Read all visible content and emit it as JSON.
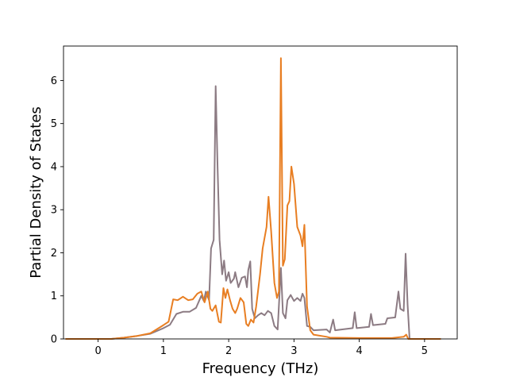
{
  "chart_data": {
    "type": "line",
    "title": "",
    "xlabel": "Frequency (THz)",
    "ylabel": "Partial Density of States",
    "xlim": [
      -0.53,
      5.5
    ],
    "ylim": [
      0,
      6.8
    ],
    "xticks": [
      0,
      1,
      2,
      3,
      4,
      5
    ],
    "yticks": [
      0,
      1,
      2,
      3,
      4,
      5,
      6
    ],
    "grid": false,
    "legend": "none",
    "series": [
      {
        "color": "#8c7b83",
        "points": [
          [
            -0.5,
            0
          ],
          [
            0.2,
            0.0
          ],
          [
            0.4,
            0.03
          ],
          [
            0.6,
            0.07
          ],
          [
            0.8,
            0.12
          ],
          [
            1.0,
            0.25
          ],
          [
            1.1,
            0.33
          ],
          [
            1.2,
            0.58
          ],
          [
            1.3,
            0.63
          ],
          [
            1.4,
            0.63
          ],
          [
            1.5,
            0.72
          ],
          [
            1.58,
            1.0
          ],
          [
            1.62,
            0.88
          ],
          [
            1.65,
            1.1
          ],
          [
            1.7,
            0.9
          ],
          [
            1.73,
            2.1
          ],
          [
            1.77,
            2.3
          ],
          [
            1.8,
            5.87
          ],
          [
            1.83,
            4.0
          ],
          [
            1.86,
            2.3
          ],
          [
            1.9,
            1.5
          ],
          [
            1.93,
            1.82
          ],
          [
            1.96,
            1.35
          ],
          [
            2.0,
            1.55
          ],
          [
            2.03,
            1.3
          ],
          [
            2.08,
            1.4
          ],
          [
            2.1,
            1.55
          ],
          [
            2.15,
            1.2
          ],
          [
            2.2,
            1.42
          ],
          [
            2.25,
            1.45
          ],
          [
            2.28,
            1.2
          ],
          [
            2.3,
            1.6
          ],
          [
            2.33,
            1.8
          ],
          [
            2.36,
            0.7
          ],
          [
            2.4,
            0.48
          ],
          [
            2.45,
            0.55
          ],
          [
            2.5,
            0.6
          ],
          [
            2.55,
            0.55
          ],
          [
            2.6,
            0.65
          ],
          [
            2.65,
            0.6
          ],
          [
            2.7,
            0.3
          ],
          [
            2.75,
            0.22
          ],
          [
            2.8,
            1.65
          ],
          [
            2.83,
            0.6
          ],
          [
            2.87,
            0.48
          ],
          [
            2.9,
            0.9
          ],
          [
            2.95,
            1.02
          ],
          [
            3.0,
            0.88
          ],
          [
            3.05,
            0.95
          ],
          [
            3.1,
            0.88
          ],
          [
            3.13,
            1.05
          ],
          [
            3.16,
            0.95
          ],
          [
            3.2,
            0.3
          ],
          [
            3.25,
            0.28
          ],
          [
            3.3,
            0.2
          ],
          [
            3.5,
            0.22
          ],
          [
            3.55,
            0.15
          ],
          [
            3.6,
            0.45
          ],
          [
            3.63,
            0.2
          ],
          [
            3.9,
            0.25
          ],
          [
            3.93,
            0.62
          ],
          [
            3.96,
            0.25
          ],
          [
            4.15,
            0.28
          ],
          [
            4.18,
            0.58
          ],
          [
            4.21,
            0.32
          ],
          [
            4.4,
            0.35
          ],
          [
            4.43,
            0.48
          ],
          [
            4.55,
            0.5
          ],
          [
            4.6,
            1.1
          ],
          [
            4.63,
            0.7
          ],
          [
            4.68,
            0.65
          ],
          [
            4.71,
            1.98
          ],
          [
            4.74,
            0.8
          ],
          [
            4.77,
            0
          ],
          [
            5.25,
            0
          ]
        ]
      },
      {
        "color": "#e87e22",
        "points": [
          [
            -0.5,
            0
          ],
          [
            0.2,
            0.0
          ],
          [
            0.4,
            0.03
          ],
          [
            0.6,
            0.07
          ],
          [
            0.8,
            0.13
          ],
          [
            1.0,
            0.32
          ],
          [
            1.08,
            0.4
          ],
          [
            1.15,
            0.92
          ],
          [
            1.22,
            0.9
          ],
          [
            1.3,
            0.98
          ],
          [
            1.38,
            0.9
          ],
          [
            1.45,
            0.92
          ],
          [
            1.52,
            1.05
          ],
          [
            1.58,
            1.1
          ],
          [
            1.63,
            0.85
          ],
          [
            1.68,
            1.1
          ],
          [
            1.72,
            0.7
          ],
          [
            1.75,
            0.65
          ],
          [
            1.8,
            0.78
          ],
          [
            1.85,
            0.4
          ],
          [
            1.88,
            0.38
          ],
          [
            1.92,
            1.18
          ],
          [
            1.95,
            0.95
          ],
          [
            1.98,
            1.15
          ],
          [
            2.02,
            0.9
          ],
          [
            2.06,
            0.7
          ],
          [
            2.1,
            0.6
          ],
          [
            2.13,
            0.7
          ],
          [
            2.18,
            0.95
          ],
          [
            2.23,
            0.85
          ],
          [
            2.27,
            0.35
          ],
          [
            2.3,
            0.3
          ],
          [
            2.34,
            0.45
          ],
          [
            2.38,
            0.38
          ],
          [
            2.42,
            0.75
          ],
          [
            2.48,
            1.5
          ],
          [
            2.52,
            2.1
          ],
          [
            2.58,
            2.6
          ],
          [
            2.61,
            3.3
          ],
          [
            2.65,
            2.5
          ],
          [
            2.7,
            1.3
          ],
          [
            2.74,
            0.95
          ],
          [
            2.77,
            1.1
          ],
          [
            2.8,
            6.52
          ],
          [
            2.83,
            1.7
          ],
          [
            2.86,
            1.85
          ],
          [
            2.9,
            3.1
          ],
          [
            2.93,
            3.2
          ],
          [
            2.96,
            4.0
          ],
          [
            3.0,
            3.6
          ],
          [
            3.05,
            2.6
          ],
          [
            3.1,
            2.4
          ],
          [
            3.13,
            2.15
          ],
          [
            3.16,
            2.65
          ],
          [
            3.2,
            0.75
          ],
          [
            3.25,
            0.2
          ],
          [
            3.3,
            0.1
          ],
          [
            3.5,
            0.05
          ],
          [
            3.55,
            0.03
          ],
          [
            4.0,
            0.02
          ],
          [
            4.5,
            0.02
          ],
          [
            4.68,
            0.05
          ],
          [
            4.72,
            0.1
          ],
          [
            4.75,
            0
          ],
          [
            5.25,
            0
          ]
        ]
      }
    ]
  }
}
